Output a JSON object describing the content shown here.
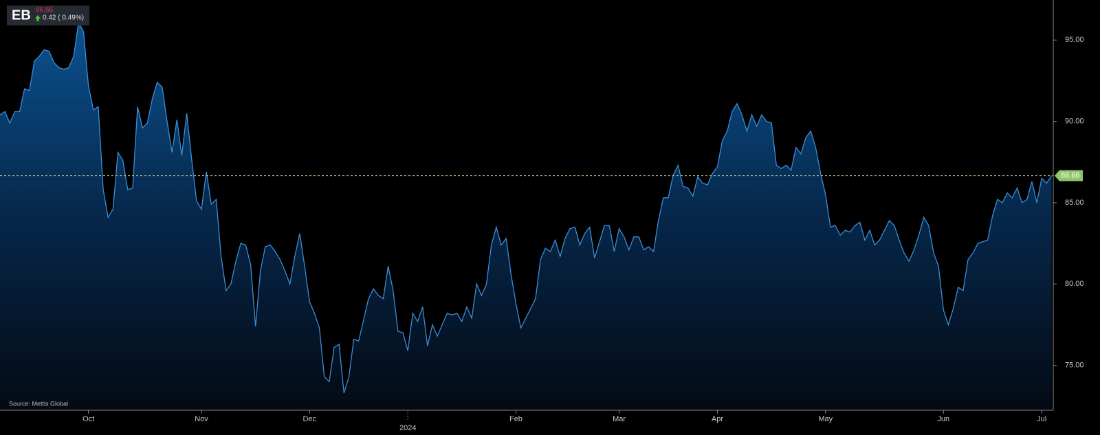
{
  "chart_data": {
    "type": "area",
    "header": {
      "symbol": "EB",
      "price": 86.66,
      "change": "0.42 ( 0.49%)"
    },
    "source": "Source: Mettis Global",
    "last_price": 86.66,
    "color": "#3a8fd9",
    "values": [
      90.4,
      90.6,
      89.9,
      90.6,
      90.6,
      92.0,
      91.9,
      93.7,
      94.0,
      94.4,
      94.3,
      93.6,
      93.3,
      93.2,
      93.3,
      94.0,
      96.1,
      95.5,
      92.2,
      90.7,
      90.9,
      85.8,
      84.1,
      84.6,
      88.1,
      87.6,
      85.8,
      85.9,
      90.9,
      89.6,
      89.9,
      91.4,
      92.4,
      92.1,
      90.0,
      88.1,
      90.1,
      87.9,
      90.5,
      87.7,
      85.1,
      84.6,
      86.9,
      84.9,
      85.2,
      81.7,
      79.6,
      80.0,
      81.4,
      82.5,
      82.4,
      81.2,
      77.4,
      80.8,
      82.3,
      82.4,
      82.0,
      81.5,
      80.8,
      80.0,
      81.7,
      83.1,
      81.1,
      78.9,
      78.2,
      77.3,
      74.3,
      74.0,
      76.1,
      76.3,
      73.3,
      74.3,
      76.6,
      76.5,
      77.8,
      79.1,
      79.7,
      79.3,
      79.1,
      81.1,
      79.6,
      77.1,
      77.0,
      75.9,
      78.2,
      77.7,
      78.6,
      76.2,
      77.5,
      76.8,
      77.5,
      78.2,
      78.1,
      78.2,
      77.7,
      78.6,
      77.9,
      80.0,
      79.3,
      80.0,
      82.4,
      83.5,
      82.4,
      82.8,
      80.6,
      78.8,
      77.3,
      77.9,
      78.5,
      79.1,
      81.5,
      82.2,
      82.0,
      82.7,
      81.7,
      82.8,
      83.4,
      83.5,
      82.4,
      83.1,
      83.5,
      81.6,
      82.6,
      83.6,
      83.6,
      82.0,
      83.4,
      82.9,
      82.1,
      82.9,
      82.9,
      82.1,
      82.3,
      82.0,
      83.9,
      85.3,
      85.3,
      86.7,
      87.3,
      86.0,
      85.9,
      85.4,
      86.6,
      86.2,
      86.1,
      86.8,
      87.2,
      88.8,
      89.4,
      90.6,
      91.1,
      90.4,
      89.4,
      90.4,
      89.7,
      90.4,
      90.0,
      89.9,
      87.3,
      87.1,
      87.3,
      87.0,
      88.4,
      88.0,
      89.0,
      89.4,
      88.4,
      86.8,
      85.5,
      83.5,
      83.6,
      83.0,
      83.3,
      83.2,
      83.6,
      83.8,
      82.7,
      83.3,
      82.4,
      82.7,
      83.3,
      83.9,
      83.6,
      82.7,
      81.9,
      81.4,
      82.1,
      83.0,
      84.1,
      83.6,
      81.9,
      81.1,
      78.4,
      77.5,
      78.5,
      79.8,
      79.6,
      81.5,
      81.9,
      82.5,
      82.6,
      82.7,
      84.2,
      85.2,
      85.0,
      85.6,
      85.3,
      85.9,
      85.0,
      85.2,
      86.3,
      85.0,
      86.5,
      86.2,
      86.66
    ],
    "xlim": [
      0,
      214
    ],
    "xticks": [
      {
        "value": 18,
        "label": "Oct"
      },
      {
        "value": 41,
        "label": "Nov"
      },
      {
        "value": 63,
        "label": "Dec"
      },
      {
        "value": 83,
        "label": "2024"
      },
      {
        "value": 105,
        "label": "Feb"
      },
      {
        "value": 126,
        "label": "Mar"
      },
      {
        "value": 146,
        "label": "Apr"
      },
      {
        "value": 168,
        "label": "May"
      },
      {
        "value": 192,
        "label": "Jun"
      },
      {
        "value": 212,
        "label": "Jul"
      }
    ],
    "ylim": [
      72.24,
      97.46
    ],
    "yticks": [
      {
        "value": 75,
        "label": "75.00"
      },
      {
        "value": 80,
        "label": "80.00"
      },
      {
        "value": 85,
        "label": "85.00"
      },
      {
        "value": 90,
        "label": "90.00"
      },
      {
        "value": 95,
        "label": "95.00"
      }
    ]
  }
}
